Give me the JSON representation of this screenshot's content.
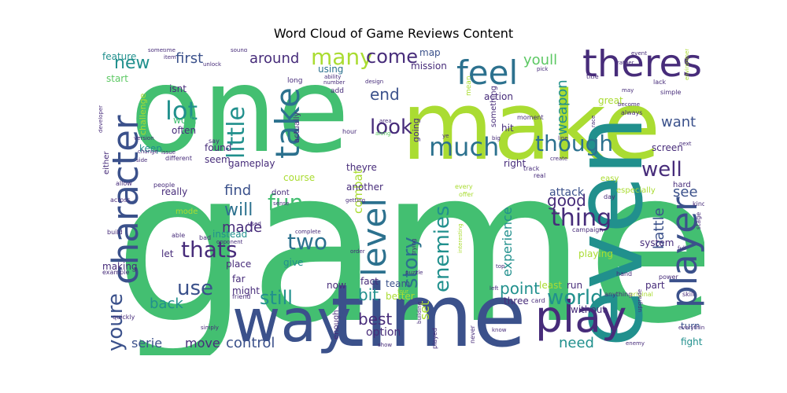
{
  "chart_data": {
    "type": "wordcloud",
    "title": "Word Cloud of Game Reviews Content",
    "palette": [
      "#440154",
      "#472c7a",
      "#3b518b",
      "#2c718e",
      "#21908d",
      "#27ad81",
      "#43bf71",
      "#5cc863",
      "#aadc32",
      "#dde318"
    ],
    "words": [
      {
        "text": "game",
        "weight": 100,
        "color": "#43bf71"
      },
      {
        "text": "one",
        "weight": 62,
        "color": "#43bf71"
      },
      {
        "text": "make",
        "weight": 55,
        "color": "#aadc32"
      },
      {
        "text": "time",
        "weight": 50,
        "color": "#3b518b"
      },
      {
        "text": "even",
        "weight": 48,
        "color": "#21908d"
      },
      {
        "text": "way",
        "weight": 40,
        "color": "#3b518b"
      },
      {
        "text": "character",
        "weight": 26,
        "color": "#3b518b"
      },
      {
        "text": "player",
        "weight": 25,
        "color": "#3b518b"
      },
      {
        "text": "play",
        "weight": 24,
        "color": "#472c7a"
      },
      {
        "text": "theres",
        "weight": 22,
        "color": "#472c7a"
      },
      {
        "text": "feel",
        "weight": 20,
        "color": "#2c718e"
      },
      {
        "text": "take",
        "weight": 20,
        "color": "#2c718e"
      },
      {
        "text": "level",
        "weight": 19,
        "color": "#2c718e"
      },
      {
        "text": "much",
        "weight": 16,
        "color": "#2c718e"
      },
      {
        "text": "lot",
        "weight": 16,
        "color": "#21908d"
      },
      {
        "text": "little",
        "weight": 15,
        "color": "#21908d"
      },
      {
        "text": "many",
        "weight": 14,
        "color": "#aadc32"
      },
      {
        "text": "thats",
        "weight": 14,
        "color": "#472c7a"
      },
      {
        "text": "though",
        "weight": 14,
        "color": "#2c718e"
      },
      {
        "text": "look",
        "weight": 14,
        "color": "#472c7a"
      },
      {
        "text": "well",
        "weight": 14,
        "color": "#472c7a"
      },
      {
        "text": "thing",
        "weight": 14,
        "color": "#472c7a"
      },
      {
        "text": "world",
        "weight": 13,
        "color": "#21908d"
      },
      {
        "text": "enemies",
        "weight": 13,
        "color": "#21908d"
      },
      {
        "text": "story",
        "weight": 13,
        "color": "#2c718e"
      },
      {
        "text": "two",
        "weight": 13,
        "color": "#2c718e"
      },
      {
        "text": "fun",
        "weight": 13,
        "color": "#43bf71"
      },
      {
        "text": "still",
        "weight": 13,
        "color": "#21908d"
      },
      {
        "text": "use",
        "weight": 13,
        "color": "#3b518b"
      },
      {
        "text": "youre",
        "weight": 12,
        "color": "#3b518b"
      },
      {
        "text": "new",
        "weight": 12,
        "color": "#21908d"
      },
      {
        "text": "come",
        "weight": 11,
        "color": "#472c7a"
      },
      {
        "text": "will",
        "weight": 11,
        "color": "#2c718e"
      },
      {
        "text": "first",
        "weight": 10,
        "color": "#3b518b"
      },
      {
        "text": "around",
        "weight": 10,
        "color": "#472c7a"
      },
      {
        "text": "youll",
        "weight": 10,
        "color": "#5cc863"
      },
      {
        "text": "end",
        "weight": 10,
        "color": "#3b518b"
      },
      {
        "text": "weapon",
        "weight": 10,
        "color": "#21908d"
      },
      {
        "text": "want",
        "weight": 9,
        "color": "#3b518b"
      },
      {
        "text": "made",
        "weight": 9,
        "color": "#472c7a"
      },
      {
        "text": "good",
        "weight": 10,
        "color": "#472c7a"
      },
      {
        "text": "back",
        "weight": 9,
        "color": "#21908d"
      },
      {
        "text": "best",
        "weight": 9,
        "color": "#472c7a"
      },
      {
        "text": "bit",
        "weight": 9,
        "color": "#21908d"
      },
      {
        "text": "point",
        "weight": 9,
        "color": "#21908d"
      },
      {
        "text": "battle",
        "weight": 9,
        "color": "#3b518b"
      },
      {
        "text": "find",
        "weight": 8,
        "color": "#3b518b"
      },
      {
        "text": "see",
        "weight": 8,
        "color": "#3b518b"
      },
      {
        "text": "experience",
        "weight": 8,
        "color": "#21908d"
      },
      {
        "text": "combat",
        "weight": 8,
        "color": "#aadc32"
      },
      {
        "text": "need",
        "weight": 8,
        "color": "#21908d"
      },
      {
        "text": "move",
        "weight": 7,
        "color": "#472c7a"
      },
      {
        "text": "control",
        "weight": 7,
        "color": "#3b518b"
      },
      {
        "text": "serie",
        "weight": 7,
        "color": "#3b518b"
      },
      {
        "text": "set",
        "weight": 7,
        "color": "#aadc32"
      },
      {
        "text": "option",
        "weight": 6,
        "color": "#472c7a"
      },
      {
        "text": "action",
        "weight": 5,
        "color": "#472c7a"
      },
      {
        "text": "great",
        "weight": 5,
        "color": "#aadc32"
      },
      {
        "text": "screen",
        "weight": 5,
        "color": "#472c7a"
      },
      {
        "text": "attack",
        "weight": 5,
        "color": "#3b518b"
      },
      {
        "text": "isnt",
        "weight": 5,
        "color": "#472c7a"
      },
      {
        "text": "work",
        "weight": 5,
        "color": "#43bf71"
      },
      {
        "text": "often",
        "weight": 5,
        "color": "#472c7a"
      },
      {
        "text": "hit",
        "weight": 5,
        "color": "#472c7a"
      },
      {
        "text": "really",
        "weight": 5,
        "color": "#472c7a"
      },
      {
        "text": "found",
        "weight": 5,
        "color": "#472c7a"
      },
      {
        "text": "seem",
        "weight": 5,
        "color": "#472c7a"
      },
      {
        "text": "keep",
        "weight": 5,
        "color": "#21908d"
      },
      {
        "text": "start",
        "weight": 5,
        "color": "#5cc863"
      },
      {
        "text": "feature",
        "weight": 5,
        "color": "#21908d"
      },
      {
        "text": "using",
        "weight": 5,
        "color": "#2c718e"
      },
      {
        "text": "mission",
        "weight": 5,
        "color": "#472c7a"
      },
      {
        "text": "map",
        "weight": 5,
        "color": "#3b518b"
      },
      {
        "text": "going",
        "weight": 5,
        "color": "#472c7a"
      },
      {
        "text": "something",
        "weight": 4,
        "color": "#472c7a"
      },
      {
        "text": "gameplay",
        "weight": 5,
        "color": "#472c7a"
      },
      {
        "text": "course",
        "weight": 5,
        "color": "#aadc32"
      },
      {
        "text": "theyre",
        "weight": 5,
        "color": "#472c7a"
      },
      {
        "text": "another",
        "weight": 5,
        "color": "#472c7a"
      },
      {
        "text": "right",
        "weight": 5,
        "color": "#472c7a"
      },
      {
        "text": "dont",
        "weight": 5,
        "color": "#472c7a"
      },
      {
        "text": "give",
        "weight": 5,
        "color": "#21908d"
      },
      {
        "text": "fact",
        "weight": 5,
        "color": "#472c7a"
      },
      {
        "text": "team",
        "weight": 5,
        "color": "#3b518b"
      },
      {
        "text": "better",
        "weight": 5,
        "color": "#aadc32"
      },
      {
        "text": "three",
        "weight": 5,
        "color": "#472c7a"
      },
      {
        "text": "least",
        "weight": 5,
        "color": "#aadc32"
      },
      {
        "text": "run",
        "weight": 5,
        "color": "#472c7a"
      },
      {
        "text": "without",
        "weight": 5,
        "color": "#472c7a"
      },
      {
        "text": "part",
        "weight": 5,
        "color": "#472c7a"
      },
      {
        "text": "system",
        "weight": 5,
        "color": "#472c7a"
      },
      {
        "text": "playing",
        "weight": 5,
        "color": "#aadc32"
      },
      {
        "text": "turn",
        "weight": 5,
        "color": "#3b518b"
      },
      {
        "text": "fight",
        "weight": 5,
        "color": "#21908d"
      },
      {
        "text": "making",
        "weight": 5,
        "color": "#472c7a"
      },
      {
        "text": "place",
        "weight": 5,
        "color": "#472c7a"
      },
      {
        "text": "far",
        "weight": 5,
        "color": "#472c7a"
      },
      {
        "text": "might",
        "weight": 5,
        "color": "#472c7a"
      },
      {
        "text": "instead",
        "weight": 5,
        "color": "#21908d"
      },
      {
        "text": "let",
        "weight": 5,
        "color": "#472c7a"
      },
      {
        "text": "mode",
        "weight": 4,
        "color": "#aadc32"
      },
      {
        "text": "actually",
        "weight": 4,
        "color": "#472c7a"
      },
      {
        "text": "enough",
        "weight": 4,
        "color": "#472c7a"
      },
      {
        "text": "now",
        "weight": 4,
        "color": "#472c7a"
      },
      {
        "text": "either",
        "weight": 4,
        "color": "#472c7a"
      },
      {
        "text": "challenge",
        "weight": 4,
        "color": "#aadc32"
      },
      {
        "text": "hard",
        "weight": 4,
        "color": "#472c7a"
      },
      {
        "text": "especially",
        "weight": 4,
        "color": "#aadc32"
      },
      {
        "text": "easy",
        "weight": 4,
        "color": "#aadc32"
      },
      {
        "text": "long",
        "weight": 3,
        "color": "#472c7a"
      },
      {
        "text": "add",
        "weight": 3,
        "color": "#472c7a"
      },
      {
        "text": "mean",
        "weight": 3,
        "color": "#aadc32"
      },
      {
        "text": "moment",
        "weight": 3,
        "color": "#472c7a"
      },
      {
        "text": "title",
        "weight": 3,
        "color": "#472c7a"
      },
      {
        "text": "lack",
        "weight": 3,
        "color": "#472c7a"
      },
      {
        "text": "always",
        "weight": 3,
        "color": "#472c7a"
      },
      {
        "text": "simple",
        "weight": 3,
        "color": "#472c7a"
      },
      {
        "text": "say",
        "weight": 3,
        "color": "#472c7a"
      },
      {
        "text": "different",
        "weight": 3,
        "color": "#472c7a"
      },
      {
        "text": "hour",
        "weight": 3,
        "color": "#472c7a"
      },
      {
        "text": "along",
        "weight": 3,
        "color": "#5cc863"
      },
      {
        "text": "track",
        "weight": 3,
        "color": "#472c7a"
      },
      {
        "text": "real",
        "weight": 3,
        "color": "#472c7a"
      },
      {
        "text": "create",
        "weight": 3,
        "color": "#472c7a"
      },
      {
        "text": "day",
        "weight": 3,
        "color": "#472c7a"
      },
      {
        "text": "kind",
        "weight": 3,
        "color": "#472c7a"
      },
      {
        "text": "stage",
        "weight": 3,
        "color": "#472c7a"
      },
      {
        "text": "people",
        "weight": 3,
        "color": "#472c7a"
      },
      {
        "text": "allow",
        "weight": 3,
        "color": "#472c7a"
      },
      {
        "text": "across",
        "weight": 3,
        "color": "#472c7a"
      },
      {
        "text": "able",
        "weight": 3,
        "color": "#472c7a"
      },
      {
        "text": "bad",
        "weight": 3,
        "color": "#472c7a"
      },
      {
        "text": "opponent",
        "weight": 3,
        "color": "#472c7a"
      },
      {
        "text": "build",
        "weight": 3,
        "color": "#472c7a"
      },
      {
        "text": "example",
        "weight": 3,
        "color": "#472c7a"
      },
      {
        "text": "friend",
        "weight": 3,
        "color": "#472c7a"
      },
      {
        "text": "quickly",
        "weight": 3,
        "color": "#472c7a"
      },
      {
        "text": "simply",
        "weight": 3,
        "color": "#472c7a"
      },
      {
        "text": "complete",
        "weight": 3,
        "color": "#472c7a"
      },
      {
        "text": "order",
        "weight": 3,
        "color": "#472c7a"
      },
      {
        "text": "puzzle",
        "weight": 3,
        "color": "#472c7a"
      },
      {
        "text": "building",
        "weight": 3,
        "color": "#472c7a"
      },
      {
        "text": "show",
        "weight": 3,
        "color": "#472c7a"
      },
      {
        "text": "played",
        "weight": 3,
        "color": "#472c7a"
      },
      {
        "text": "never",
        "weight": 3,
        "color": "#472c7a"
      },
      {
        "text": "know",
        "weight": 3,
        "color": "#472c7a"
      },
      {
        "text": "campaign",
        "weight": 3,
        "color": "#472c7a"
      },
      {
        "text": "card",
        "weight": 3,
        "color": "#472c7a"
      },
      {
        "text": "hand",
        "weight": 3,
        "color": "#472c7a"
      },
      {
        "text": "anything",
        "weight": 3,
        "color": "#472c7a"
      },
      {
        "text": "original",
        "weight": 3,
        "color": "#aadc32"
      },
      {
        "text": "power",
        "weight": 3,
        "color": "#472c7a"
      },
      {
        "text": "skill",
        "weight": 3,
        "color": "#472c7a"
      },
      {
        "text": "everything",
        "weight": 3,
        "color": "#472c7a"
      },
      {
        "text": "upgrade",
        "weight": 3,
        "color": "#472c7a"
      },
      {
        "text": "enemy",
        "weight": 3,
        "color": "#472c7a"
      },
      {
        "text": "interesting",
        "weight": 3,
        "color": "#aadc32"
      },
      {
        "text": "every",
        "weight": 3,
        "color": "#aadc32"
      },
      {
        "text": "offer",
        "weight": 3,
        "color": "#aadc32"
      },
      {
        "text": "sense",
        "weight": 3,
        "color": "#472c7a"
      },
      {
        "text": "used",
        "weight": 3,
        "color": "#472c7a"
      },
      {
        "text": "getting",
        "weight": 3,
        "color": "#472c7a"
      },
      {
        "text": "trying",
        "weight": 3,
        "color": "#472c7a"
      },
      {
        "text": "sometime",
        "weight": 3,
        "color": "#472c7a"
      },
      {
        "text": "sound",
        "weight": 3,
        "color": "#472c7a"
      },
      {
        "text": "item",
        "weight": 3,
        "color": "#472c7a"
      },
      {
        "text": "unlock",
        "weight": 3,
        "color": "#472c7a"
      },
      {
        "text": "ability",
        "weight": 3,
        "color": "#472c7a"
      },
      {
        "text": "number",
        "weight": 3,
        "color": "#472c7a"
      },
      {
        "text": "design",
        "weight": 3,
        "color": "#472c7a"
      },
      {
        "text": "area",
        "weight": 3,
        "color": "#472c7a"
      },
      {
        "text": "pick",
        "weight": 3,
        "color": "#472c7a"
      },
      {
        "text": "may",
        "weight": 3,
        "color": "#472c7a"
      },
      {
        "text": "become",
        "weight": 3,
        "color": "#472c7a"
      },
      {
        "text": "rather",
        "weight": 3,
        "color": "#472c7a"
      },
      {
        "text": "event",
        "weight": 3,
        "color": "#472c7a"
      },
      {
        "text": "developer",
        "weight": 3,
        "color": "#472c7a"
      },
      {
        "text": "version",
        "weight": 3,
        "color": "#472c7a"
      },
      {
        "text": "change",
        "weight": 3,
        "color": "#472c7a"
      },
      {
        "text": "issue",
        "weight": 3,
        "color": "#472c7a"
      },
      {
        "text": "side",
        "weight": 3,
        "color": "#472c7a"
      },
      {
        "text": "next",
        "weight": 3,
        "color": "#472c7a"
      },
      {
        "text": "line",
        "weight": 3,
        "color": "#472c7a"
      },
      {
        "text": "big",
        "weight": 3,
        "color": "#472c7a"
      },
      {
        "text": "ye",
        "weight": 3,
        "color": "#472c7a"
      },
      {
        "text": "top",
        "weight": 3,
        "color": "#472c7a"
      },
      {
        "text": "left",
        "weight": 3,
        "color": "#472c7a"
      },
      {
        "text": "four",
        "weight": 3,
        "color": "#aadc32"
      },
      {
        "text": "full",
        "weight": 3,
        "color": "#472c7a"
      },
      {
        "text": "race",
        "weight": 3,
        "color": "#472c7a"
      },
      {
        "text": "environment",
        "weight": 3,
        "color": "#aadc32"
      }
    ]
  }
}
